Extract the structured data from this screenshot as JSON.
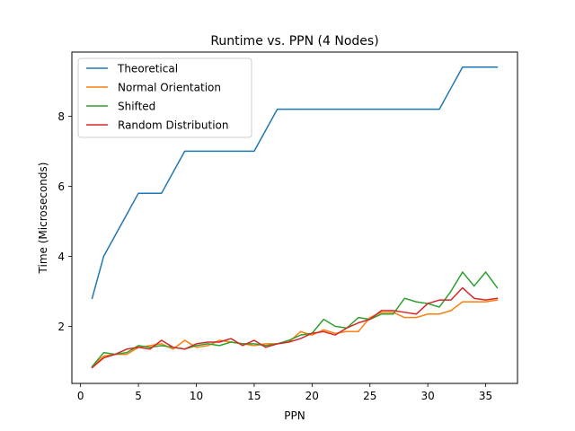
{
  "chart_data": {
    "type": "line",
    "title": "Runtime vs. PPN (4 Nodes)",
    "xlabel": "PPN",
    "ylabel": "Time (Microseconds)",
    "xlim": [
      -0.75,
      37.75
    ],
    "ylim": [
      0.37,
      9.83
    ],
    "xticks": [
      0,
      5,
      10,
      15,
      20,
      25,
      30,
      35
    ],
    "yticks": [
      2,
      4,
      6,
      8
    ],
    "grid": false,
    "legend_position": "top-left",
    "x": [
      1,
      2,
      3,
      4,
      5,
      6,
      7,
      8,
      9,
      10,
      11,
      12,
      13,
      14,
      15,
      16,
      17,
      18,
      19,
      20,
      21,
      22,
      23,
      24,
      25,
      26,
      27,
      28,
      29,
      30,
      31,
      32,
      33,
      34,
      35,
      36
    ],
    "series": [
      {
        "name": "Theoretical",
        "color": "#1f77b4",
        "values": [
          2.8,
          4.0,
          4.6,
          5.2,
          5.8,
          5.8,
          5.8,
          6.4,
          7.0,
          7.0,
          7.0,
          7.0,
          7.0,
          7.0,
          7.0,
          7.6,
          8.2,
          8.2,
          8.2,
          8.2,
          8.2,
          8.2,
          8.2,
          8.2,
          8.2,
          8.2,
          8.2,
          8.2,
          8.2,
          8.2,
          8.2,
          8.8,
          9.4,
          9.4,
          9.4,
          9.4
        ]
      },
      {
        "name": "Normal Orientation",
        "color": "#ff7f0e",
        "values": [
          0.85,
          1.15,
          1.2,
          1.2,
          1.4,
          1.45,
          1.5,
          1.35,
          1.6,
          1.4,
          1.45,
          1.6,
          1.55,
          1.5,
          1.45,
          1.5,
          1.5,
          1.55,
          1.85,
          1.75,
          1.9,
          1.8,
          1.85,
          1.85,
          2.25,
          2.4,
          2.4,
          2.25,
          2.25,
          2.35,
          2.35,
          2.45,
          2.7,
          2.7,
          2.7,
          2.75
        ]
      },
      {
        "name": "Shifted",
        "color": "#2ca02c",
        "values": [
          0.85,
          1.25,
          1.2,
          1.25,
          1.45,
          1.4,
          1.45,
          1.4,
          1.35,
          1.45,
          1.5,
          1.45,
          1.55,
          1.5,
          1.5,
          1.45,
          1.5,
          1.6,
          1.75,
          1.8,
          2.2,
          2.0,
          1.95,
          2.25,
          2.2,
          2.35,
          2.35,
          2.8,
          2.7,
          2.65,
          2.55,
          3.0,
          3.55,
          3.15,
          3.55,
          3.1
        ]
      },
      {
        "name": "Random Distribution",
        "color": "#d62728",
        "values": [
          0.82,
          1.1,
          1.2,
          1.35,
          1.4,
          1.35,
          1.6,
          1.4,
          1.35,
          1.5,
          1.55,
          1.55,
          1.65,
          1.45,
          1.6,
          1.4,
          1.5,
          1.55,
          1.65,
          1.8,
          1.85,
          1.75,
          1.95,
          2.1,
          2.2,
          2.45,
          2.45,
          2.4,
          2.35,
          2.65,
          2.75,
          2.75,
          3.1,
          2.8,
          2.75,
          2.8
        ]
      }
    ]
  }
}
